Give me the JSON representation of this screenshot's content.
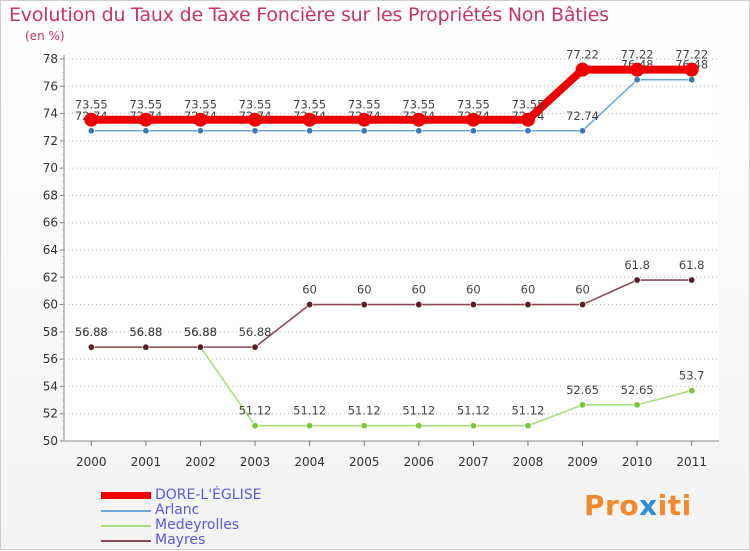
{
  "title": "Evolution du Taux de Taxe Foncière sur les Propriétés Non Bâties",
  "unit": "(en %)",
  "logo": {
    "text": "Proxiti",
    "part1": "Pro",
    "part2": "x",
    "part3": "iti"
  },
  "chart_data": {
    "type": "line",
    "title": "Evolution du Taux de Taxe Foncière sur les Propriétés Non Bâties",
    "ylabel": "(en %)",
    "xlabel": "",
    "ylim": [
      50,
      78
    ],
    "yticks": [
      50,
      52,
      54,
      56,
      58,
      60,
      62,
      64,
      66,
      68,
      70,
      72,
      74,
      76,
      78
    ],
    "grid": "horizontal dotted",
    "legend_position": "bottom-left",
    "x": [
      "2000",
      "2001",
      "2002",
      "2003",
      "2004",
      "2005",
      "2006",
      "2007",
      "2008",
      "2009",
      "2010",
      "2011"
    ],
    "series": [
      {
        "name": "Arlanc",
        "color": "#6fa8d8",
        "marker": "#3a79b9",
        "values": [
          72.74,
          72.74,
          72.74,
          72.74,
          72.74,
          72.74,
          72.74,
          72.74,
          72.74,
          72.74,
          76.48,
          76.48
        ],
        "labels": [
          "72.74",
          "72.74",
          "72.74",
          "72.74",
          "72.74",
          "72.74",
          "72.74",
          "72.74",
          "72.74",
          "72.74",
          "76.48",
          "76.48"
        ]
      },
      {
        "name": "Medeyrolles",
        "color": "#a6e07a",
        "marker": "#79c83a",
        "values": [
          56.88,
          56.88,
          56.88,
          51.12,
          51.12,
          51.12,
          51.12,
          51.12,
          51.12,
          52.65,
          52.65,
          53.7
        ],
        "labels": [
          "56.88",
          "56.88",
          "56.88",
          "51.12",
          "51.12",
          "51.12",
          "51.12",
          "51.12",
          "51.12",
          "52.65",
          "52.65",
          "53.7"
        ]
      },
      {
        "name": "Mayres",
        "color": "#8a4a55",
        "marker": "#5a1f22",
        "values": [
          56.88,
          56.88,
          56.88,
          56.88,
          60,
          60,
          60,
          60,
          60,
          60,
          61.8,
          61.8
        ],
        "labels": [
          "56.88",
          "56.88",
          "56.88",
          "56.88",
          "60",
          "60",
          "60",
          "60",
          "60",
          "60",
          "61.8",
          "61.8"
        ]
      },
      {
        "name": "DORE-L'ÉGLISE",
        "color": "#ee0000",
        "marker": "#ee0000",
        "highlight": true,
        "values": [
          73.55,
          73.55,
          73.55,
          73.55,
          73.55,
          73.55,
          73.55,
          73.55,
          73.55,
          77.22,
          77.22,
          77.22
        ],
        "labels": [
          "73.55",
          "73.55",
          "73.55",
          "73.55",
          "73.55",
          "73.55",
          "73.55",
          "73.55",
          "73.55",
          "77.22",
          "77.22",
          "77.22"
        ]
      }
    ],
    "legend_order": [
      "DORE-L'ÉGLISE",
      "Arlanc",
      "Medeyrolles",
      "Mayres"
    ]
  }
}
